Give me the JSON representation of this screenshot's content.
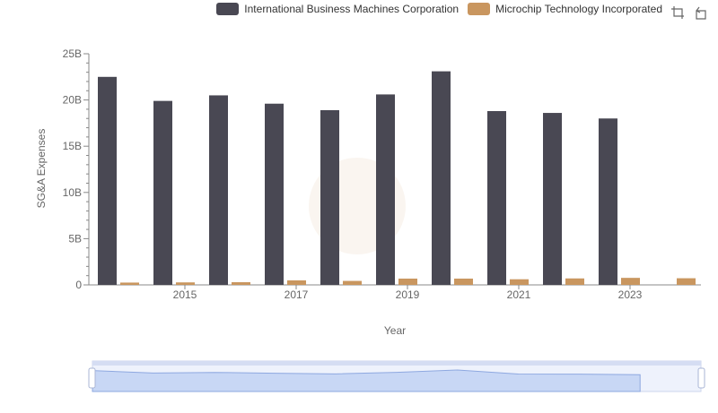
{
  "colors": {
    "ibm": "#494853",
    "mchp": "#c9965f"
  },
  "legend": [
    {
      "label": "International Business Machines Corporation",
      "color": "#494853"
    },
    {
      "label": "Microchip Technology Incorporated",
      "color": "#c9965f"
    }
  ],
  "toolbox": {
    "zoom_icon": "zoom-icon",
    "restore_icon": "restore-icon"
  },
  "chart_data": {
    "type": "bar",
    "xlabel": "Year",
    "ylabel": "SG&A Expenses",
    "categories": [
      "2014",
      "2015",
      "2016",
      "2017",
      "2018",
      "2019",
      "2020",
      "2021",
      "2022",
      "2023",
      "2024"
    ],
    "x_tick_labels": [
      "2015",
      "2017",
      "2019",
      "2021",
      "2023"
    ],
    "y_ticks": [
      "0",
      "5B",
      "10B",
      "15B",
      "20B",
      "25B"
    ],
    "ylim": [
      0,
      25000000000
    ],
    "series": [
      {
        "name": "International Business Machines Corporation",
        "values": [
          22500000000,
          19900000000,
          20500000000,
          19600000000,
          18900000000,
          20600000000,
          23100000000,
          18800000000,
          18600000000,
          18000000000,
          null
        ]
      },
      {
        "name": "Microchip Technology Incorporated",
        "values": [
          250000000,
          270000000,
          290000000,
          490000000,
          430000000,
          680000000,
          680000000,
          610000000,
          700000000,
          760000000,
          720000000
        ]
      }
    ],
    "grid": false,
    "legend_position": "top-right",
    "data_zoom": true
  }
}
